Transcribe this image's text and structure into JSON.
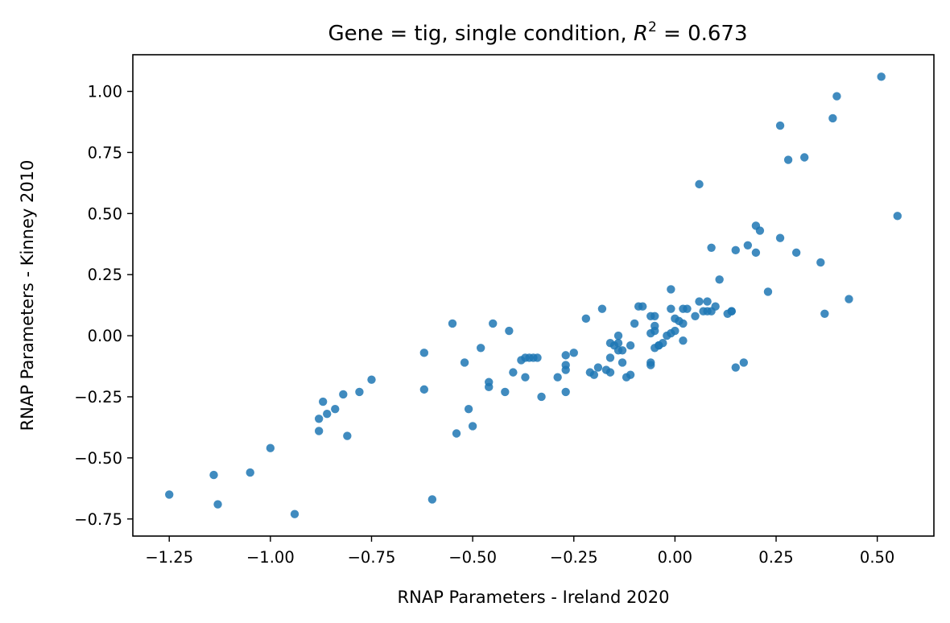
{
  "chart_data": {
    "type": "scatter",
    "title_main": "Gene = tig, single condition, ",
    "title_r": "R",
    "title_sup": "2",
    "title_tail": " = 0.673",
    "xlabel": "RNAP Parameters - Ireland 2020",
    "ylabel": "RNAP Parameters - Kinney 2010",
    "xlim": [
      -1.34,
      0.64
    ],
    "ylim": [
      -0.82,
      1.15
    ],
    "xticks": [
      -1.25,
      -1.0,
      -0.75,
      -0.5,
      -0.25,
      0.0,
      0.25,
      0.5
    ],
    "xtick_labels": [
      "−1.25",
      "−1.00",
      "−0.75",
      "−0.50",
      "−0.25",
      "0.00",
      "0.25",
      "0.50"
    ],
    "yticks": [
      -0.75,
      -0.5,
      -0.25,
      0.0,
      0.25,
      0.5,
      0.75,
      1.0
    ],
    "ytick_labels": [
      "−0.75",
      "−0.50",
      "−0.25",
      "0.00",
      "0.25",
      "0.50",
      "0.75",
      "1.00"
    ],
    "grid": false,
    "color": "#1f77b4",
    "points": [
      [
        -1.25,
        -0.65
      ],
      [
        -1.14,
        -0.57
      ],
      [
        -1.13,
        -0.69
      ],
      [
        -1.05,
        -0.56
      ],
      [
        -1.0,
        -0.46
      ],
      [
        -0.94,
        -0.73
      ],
      [
        -0.88,
        -0.39
      ],
      [
        -0.88,
        -0.34
      ],
      [
        -0.87,
        -0.27
      ],
      [
        -0.86,
        -0.32
      ],
      [
        -0.84,
        -0.3
      ],
      [
        -0.82,
        -0.24
      ],
      [
        -0.81,
        -0.41
      ],
      [
        -0.78,
        -0.23
      ],
      [
        -0.75,
        -0.18
      ],
      [
        -0.62,
        -0.07
      ],
      [
        -0.62,
        -0.22
      ],
      [
        -0.6,
        -0.67
      ],
      [
        -0.55,
        0.05
      ],
      [
        -0.54,
        -0.4
      ],
      [
        -0.52,
        -0.11
      ],
      [
        -0.51,
        -0.3
      ],
      [
        -0.5,
        -0.37
      ],
      [
        -0.48,
        -0.05
      ],
      [
        -0.46,
        -0.19
      ],
      [
        -0.46,
        -0.21
      ],
      [
        -0.45,
        0.05
      ],
      [
        -0.42,
        -0.23
      ],
      [
        -0.41,
        0.02
      ],
      [
        -0.4,
        -0.15
      ],
      [
        -0.38,
        -0.1
      ],
      [
        -0.37,
        -0.09
      ],
      [
        -0.37,
        -0.17
      ],
      [
        -0.36,
        -0.09
      ],
      [
        -0.35,
        -0.09
      ],
      [
        -0.34,
        -0.09
      ],
      [
        -0.33,
        -0.25
      ],
      [
        -0.29,
        -0.17
      ],
      [
        -0.27,
        -0.14
      ],
      [
        -0.27,
        -0.12
      ],
      [
        -0.27,
        -0.08
      ],
      [
        -0.27,
        -0.23
      ],
      [
        -0.25,
        -0.07
      ],
      [
        -0.22,
        0.07
      ],
      [
        -0.21,
        -0.15
      ],
      [
        -0.2,
        -0.16
      ],
      [
        -0.19,
        -0.13
      ],
      [
        -0.18,
        0.11
      ],
      [
        -0.17,
        -0.14
      ],
      [
        -0.16,
        -0.03
      ],
      [
        -0.16,
        -0.09
      ],
      [
        -0.16,
        -0.15
      ],
      [
        -0.15,
        -0.04
      ],
      [
        -0.14,
        0.0
      ],
      [
        -0.14,
        -0.03
      ],
      [
        -0.14,
        -0.06
      ],
      [
        -0.13,
        -0.06
      ],
      [
        -0.13,
        -0.11
      ],
      [
        -0.12,
        -0.17
      ],
      [
        -0.11,
        -0.16
      ],
      [
        -0.11,
        -0.04
      ],
      [
        -0.1,
        0.05
      ],
      [
        -0.09,
        0.12
      ],
      [
        -0.08,
        0.12
      ],
      [
        -0.06,
        -0.12
      ],
      [
        -0.06,
        -0.11
      ],
      [
        -0.06,
        0.01
      ],
      [
        -0.06,
        0.08
      ],
      [
        -0.05,
        0.02
      ],
      [
        -0.05,
        0.04
      ],
      [
        -0.05,
        0.08
      ],
      [
        -0.05,
        -0.05
      ],
      [
        -0.04,
        -0.04
      ],
      [
        -0.04,
        -0.04
      ],
      [
        -0.03,
        -0.03
      ],
      [
        -0.02,
        0.0
      ],
      [
        -0.01,
        0.19
      ],
      [
        -0.01,
        0.11
      ],
      [
        -0.01,
        0.01
      ],
      [
        0.0,
        0.02
      ],
      [
        0.0,
        0.07
      ],
      [
        0.01,
        0.06
      ],
      [
        0.02,
        0.05
      ],
      [
        0.02,
        -0.02
      ],
      [
        0.02,
        0.11
      ],
      [
        0.03,
        0.11
      ],
      [
        0.05,
        0.08
      ],
      [
        0.06,
        0.14
      ],
      [
        0.06,
        0.62
      ],
      [
        0.07,
        0.1
      ],
      [
        0.08,
        0.14
      ],
      [
        0.08,
        0.1
      ],
      [
        0.09,
        0.1
      ],
      [
        0.09,
        0.36
      ],
      [
        0.1,
        0.12
      ],
      [
        0.11,
        0.23
      ],
      [
        0.13,
        0.09
      ],
      [
        0.14,
        0.1
      ],
      [
        0.14,
        0.1
      ],
      [
        0.15,
        0.35
      ],
      [
        0.15,
        -0.13
      ],
      [
        0.17,
        -0.11
      ],
      [
        0.18,
        0.37
      ],
      [
        0.2,
        0.45
      ],
      [
        0.2,
        0.34
      ],
      [
        0.21,
        0.43
      ],
      [
        0.23,
        0.18
      ],
      [
        0.26,
        0.86
      ],
      [
        0.26,
        0.4
      ],
      [
        0.28,
        0.72
      ],
      [
        0.3,
        0.34
      ],
      [
        0.32,
        0.73
      ],
      [
        0.36,
        0.3
      ],
      [
        0.37,
        0.09
      ],
      [
        0.39,
        0.89
      ],
      [
        0.4,
        0.98
      ],
      [
        0.43,
        0.15
      ],
      [
        0.51,
        1.06
      ],
      [
        0.55,
        0.49
      ]
    ]
  }
}
